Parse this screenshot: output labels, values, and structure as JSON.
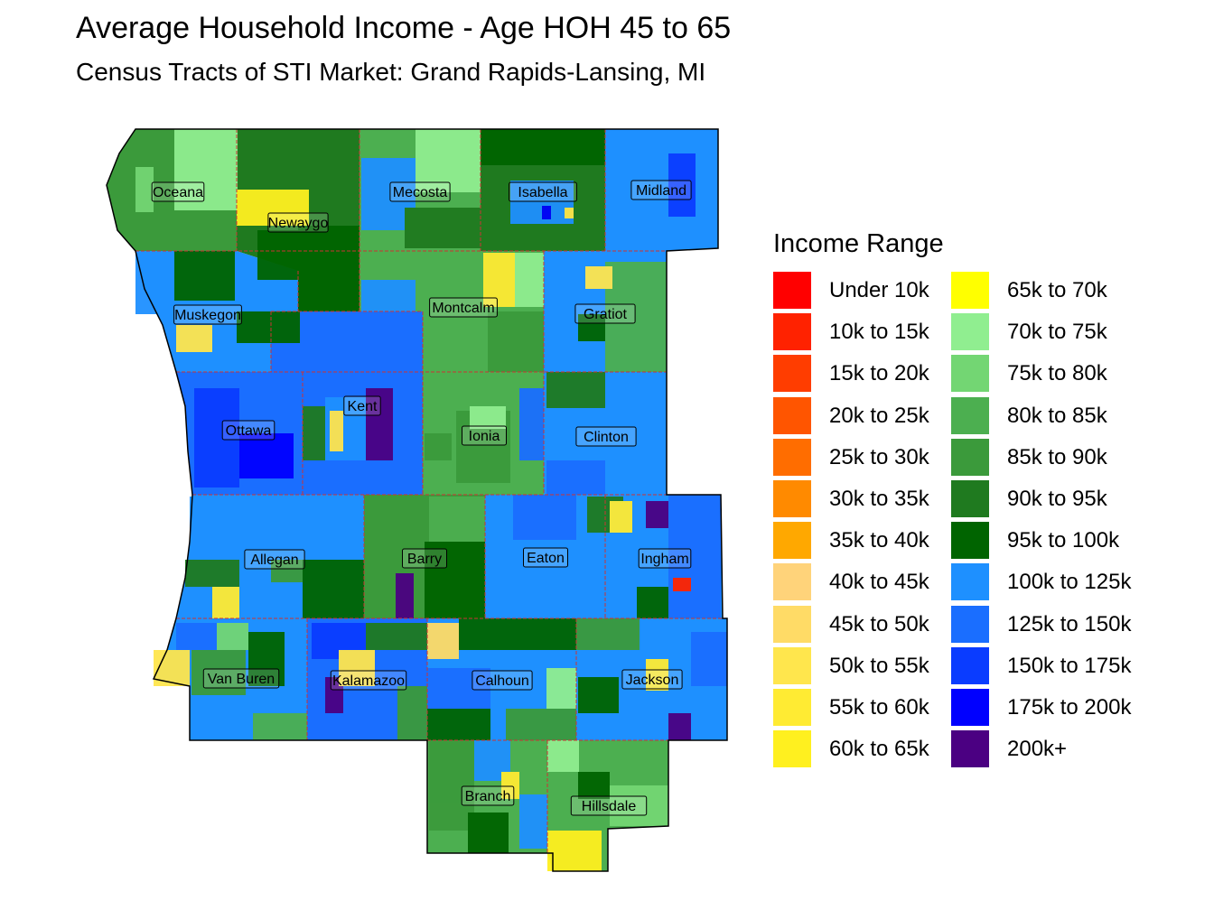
{
  "title": "Average Household Income - Age HOH 45 to 65",
  "subtitle": "Census Tracts of STI Market: Grand Rapids-Lansing, MI",
  "legend": {
    "title": "Income Range",
    "items": [
      {
        "label": "Under 10k",
        "color": "#ff0000"
      },
      {
        "label": "10k to 15k",
        "color": "#ff2200"
      },
      {
        "label": "15k to 20k",
        "color": "#ff3d00"
      },
      {
        "label": "20k to 25k",
        "color": "#ff5500"
      },
      {
        "label": "25k to 30k",
        "color": "#ff6d00"
      },
      {
        "label": "30k to 35k",
        "color": "#ff8a00"
      },
      {
        "label": "35k to 40k",
        "color": "#ffa800"
      },
      {
        "label": "40k to 45k",
        "color": "#ffd37a"
      },
      {
        "label": "45k to 50k",
        "color": "#ffdb66"
      },
      {
        "label": "50k to 55k",
        "color": "#ffe64d"
      },
      {
        "label": "55k to 60k",
        "color": "#ffeb33"
      },
      {
        "label": "60k to 65k",
        "color": "#fff01f"
      },
      {
        "label": "65k to 70k",
        "color": "#ffff00"
      },
      {
        "label": "70k to 75k",
        "color": "#90ee90"
      },
      {
        "label": "75k to 80k",
        "color": "#73d673"
      },
      {
        "label": "80k to 85k",
        "color": "#4caf50"
      },
      {
        "label": "85k to 90k",
        "color": "#3b9a3b"
      },
      {
        "label": "90k to 95k",
        "color": "#1f7a1f"
      },
      {
        "label": "95k to 100k",
        "color": "#006400"
      },
      {
        "label": "100k to 125k",
        "color": "#1e90ff"
      },
      {
        "label": "125k to 150k",
        "color": "#1a6eff"
      },
      {
        "label": "150k to 175k",
        "color": "#0a3cff"
      },
      {
        "label": "175k to 200k",
        "color": "#0000ff"
      },
      {
        "label": "200k+",
        "color": "#4b0082"
      }
    ]
  },
  "counties": [
    {
      "name": "Oceana",
      "color": "#3b9a3b"
    },
    {
      "name": "Newaygo",
      "color": "#1f7a1f"
    },
    {
      "name": "Mecosta",
      "color": "#4caf50"
    },
    {
      "name": "Isabella",
      "color": "#1f7a1f"
    },
    {
      "name": "Midland",
      "color": "#1e90ff"
    },
    {
      "name": "Muskegon",
      "color": "#1e90ff"
    },
    {
      "name": "Montcalm",
      "color": "#4caf50"
    },
    {
      "name": "Gratiot",
      "color": "#1e90ff"
    },
    {
      "name": "Kent",
      "color": "#1a6eff"
    },
    {
      "name": "Ottawa",
      "color": "#1a6eff"
    },
    {
      "name": "Ionia",
      "color": "#4caf50"
    },
    {
      "name": "Clinton",
      "color": "#1e90ff"
    },
    {
      "name": "Allegan",
      "color": "#1e90ff"
    },
    {
      "name": "Barry",
      "color": "#3b9a3b"
    },
    {
      "name": "Eaton",
      "color": "#1e90ff"
    },
    {
      "name": "Ingham",
      "color": "#1e90ff"
    },
    {
      "name": "Van Buren",
      "color": "#1e90ff"
    },
    {
      "name": "Kalamazoo",
      "color": "#1a6eff"
    },
    {
      "name": "Calhoun",
      "color": "#1e90ff"
    },
    {
      "name": "Jackson",
      "color": "#1e90ff"
    },
    {
      "name": "Branch",
      "color": "#4caf50"
    },
    {
      "name": "Hillsdale",
      "color": "#4caf50"
    }
  ]
}
